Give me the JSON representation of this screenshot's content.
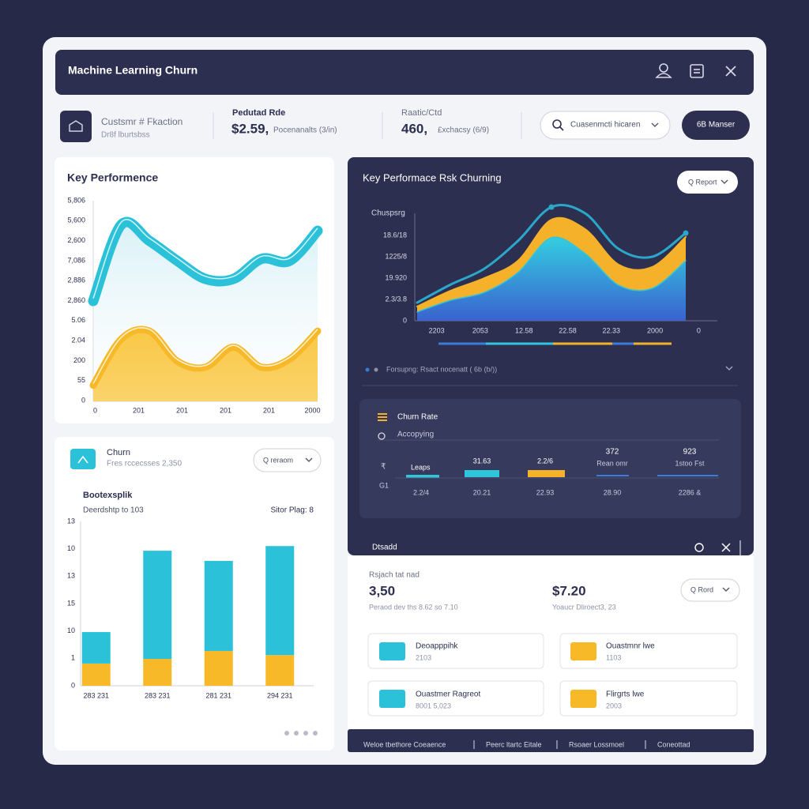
{
  "header": {
    "title": "Machine Learning Churn"
  },
  "stats": {
    "customer": {
      "title": "Custsmr # Fkaction",
      "subtitle": "Dr8f lburtsbss"
    },
    "predicted": {
      "label": "Pedutad Rde",
      "value": "$2.59,",
      "note": "Pocenanalts  (3/in)"
    },
    "rate": {
      "label": "Raatic/Ctd",
      "value": "460,",
      "note": "£xchacsy (6/9)"
    },
    "search": "Cuasenmcti hicaren",
    "button": "6B Manser"
  },
  "performance_chart": {
    "type": "area",
    "title": "Key Performence",
    "y_labels": [
      "5,806",
      "5,600",
      "2,600",
      "7,086",
      "2,886",
      "2,860",
      "5.06",
      "2.04",
      "200",
      "55",
      "0"
    ],
    "x_labels": [
      "0",
      "201",
      "201",
      "201",
      "201",
      "2000"
    ],
    "ylim": [
      0,
      100
    ],
    "series": [
      {
        "color": "#2bc2d9",
        "values": [
          50,
          88,
          80,
          70,
          61,
          61,
          71,
          70,
          85
        ]
      },
      {
        "color": "#f7b928",
        "values": [
          8,
          31,
          35,
          20,
          17,
          27,
          17,
          21,
          35
        ]
      }
    ]
  },
  "churn_card": {
    "title": "Churn",
    "subtitle": "Fres rccecsses 2,350",
    "button": "Q reraom"
  },
  "churn_bar_chart": {
    "type": "bar",
    "stacked": true,
    "title": "Bootexsplik",
    "subtitle": "Deerdshtp to 103",
    "note": "Sitor Plag: 8",
    "y_labels": [
      "13",
      "10",
      "13",
      "15",
      "10",
      "1",
      "0"
    ],
    "categories": [
      "283  231",
      "283  231",
      "281  231",
      "294  231"
    ],
    "ylim": [
      0,
      6
    ],
    "series": [
      {
        "color": "#f7b928",
        "values": [
          0.81,
          0.98,
          1.27,
          1.12
        ]
      },
      {
        "color": "#2bc2d9",
        "values": [
          1.15,
          3.95,
          3.29,
          3.98
        ]
      }
    ]
  },
  "risk_chart": {
    "type": "area",
    "title": "Key Performace Rsk Churning",
    "button": "Q Report",
    "y_axis_label": "Chuspsrg",
    "y_labels": [
      "18.6/18",
      "1225/8",
      "19.920",
      "2.3/3.8",
      "0"
    ],
    "x_labels": [
      "2203",
      "2053",
      "12.58",
      "22.58",
      "22.33",
      "2000",
      "0"
    ],
    "ylim": [
      0,
      4
    ],
    "series": [
      {
        "color": "#f5b12a",
        "values": [
          0.67,
          1.41,
          2.0,
          2.81,
          4.74,
          4.3,
          2.63,
          2.52,
          3.93
        ]
      },
      {
        "color": "#2fc6dc",
        "values": [
          0.41,
          0.96,
          1.33,
          2.26,
          3.89,
          3.15,
          1.67,
          1.52,
          2.81
        ]
      },
      {
        "color": "#2aa7c9",
        "values": [
          0.85,
          1.7,
          2.44,
          3.74,
          5.33,
          5.04,
          3.37,
          3.0,
          4.11
        ]
      }
    ],
    "footer": "Forsupng: Rsact nocenatt ( 6b (b/))"
  },
  "churn_rate": {
    "title": "Churn Rate",
    "subtitle": "Accopying",
    "row_labels": [
      "₹",
      "G1"
    ],
    "columns": [
      {
        "value": "Leaps"
      },
      {
        "value": "31.63"
      },
      {
        "value": "2.2/6"
      },
      {
        "value": "372",
        "label": "Rean omr"
      },
      {
        "value": "923",
        "label": "1stoo Fst"
      }
    ],
    "x_labels": [
      "2.2/4",
      "20.21",
      "22.93",
      "28.90",
      "2286 &"
    ]
  },
  "dialog": {
    "title": "Dtsadd",
    "subtitle": "Rsjach tat nad",
    "metrics": [
      {
        "value": "3,50",
        "note": "Peraod dev ths 8.62 so 7.10"
      },
      {
        "value": "$7.20",
        "note": "Yoaucr Dliroect3, 23"
      }
    ],
    "button": "Q Rord",
    "cards": [
      {
        "title": "Deoapppihk",
        "value": "2103"
      },
      {
        "title": "Ouastmnr lwe",
        "value": "1103"
      },
      {
        "title": "Ouastmer Ragreot",
        "value": "8001 5,023"
      },
      {
        "title": "Flirgrts lwe",
        "value": "2003"
      }
    ]
  },
  "footer": {
    "links": [
      "Weloe tbethore Coeaence",
      "Peerc ltartc Eitale",
      "Rsoaer Lossmoel",
      "Coneottad"
    ]
  }
}
